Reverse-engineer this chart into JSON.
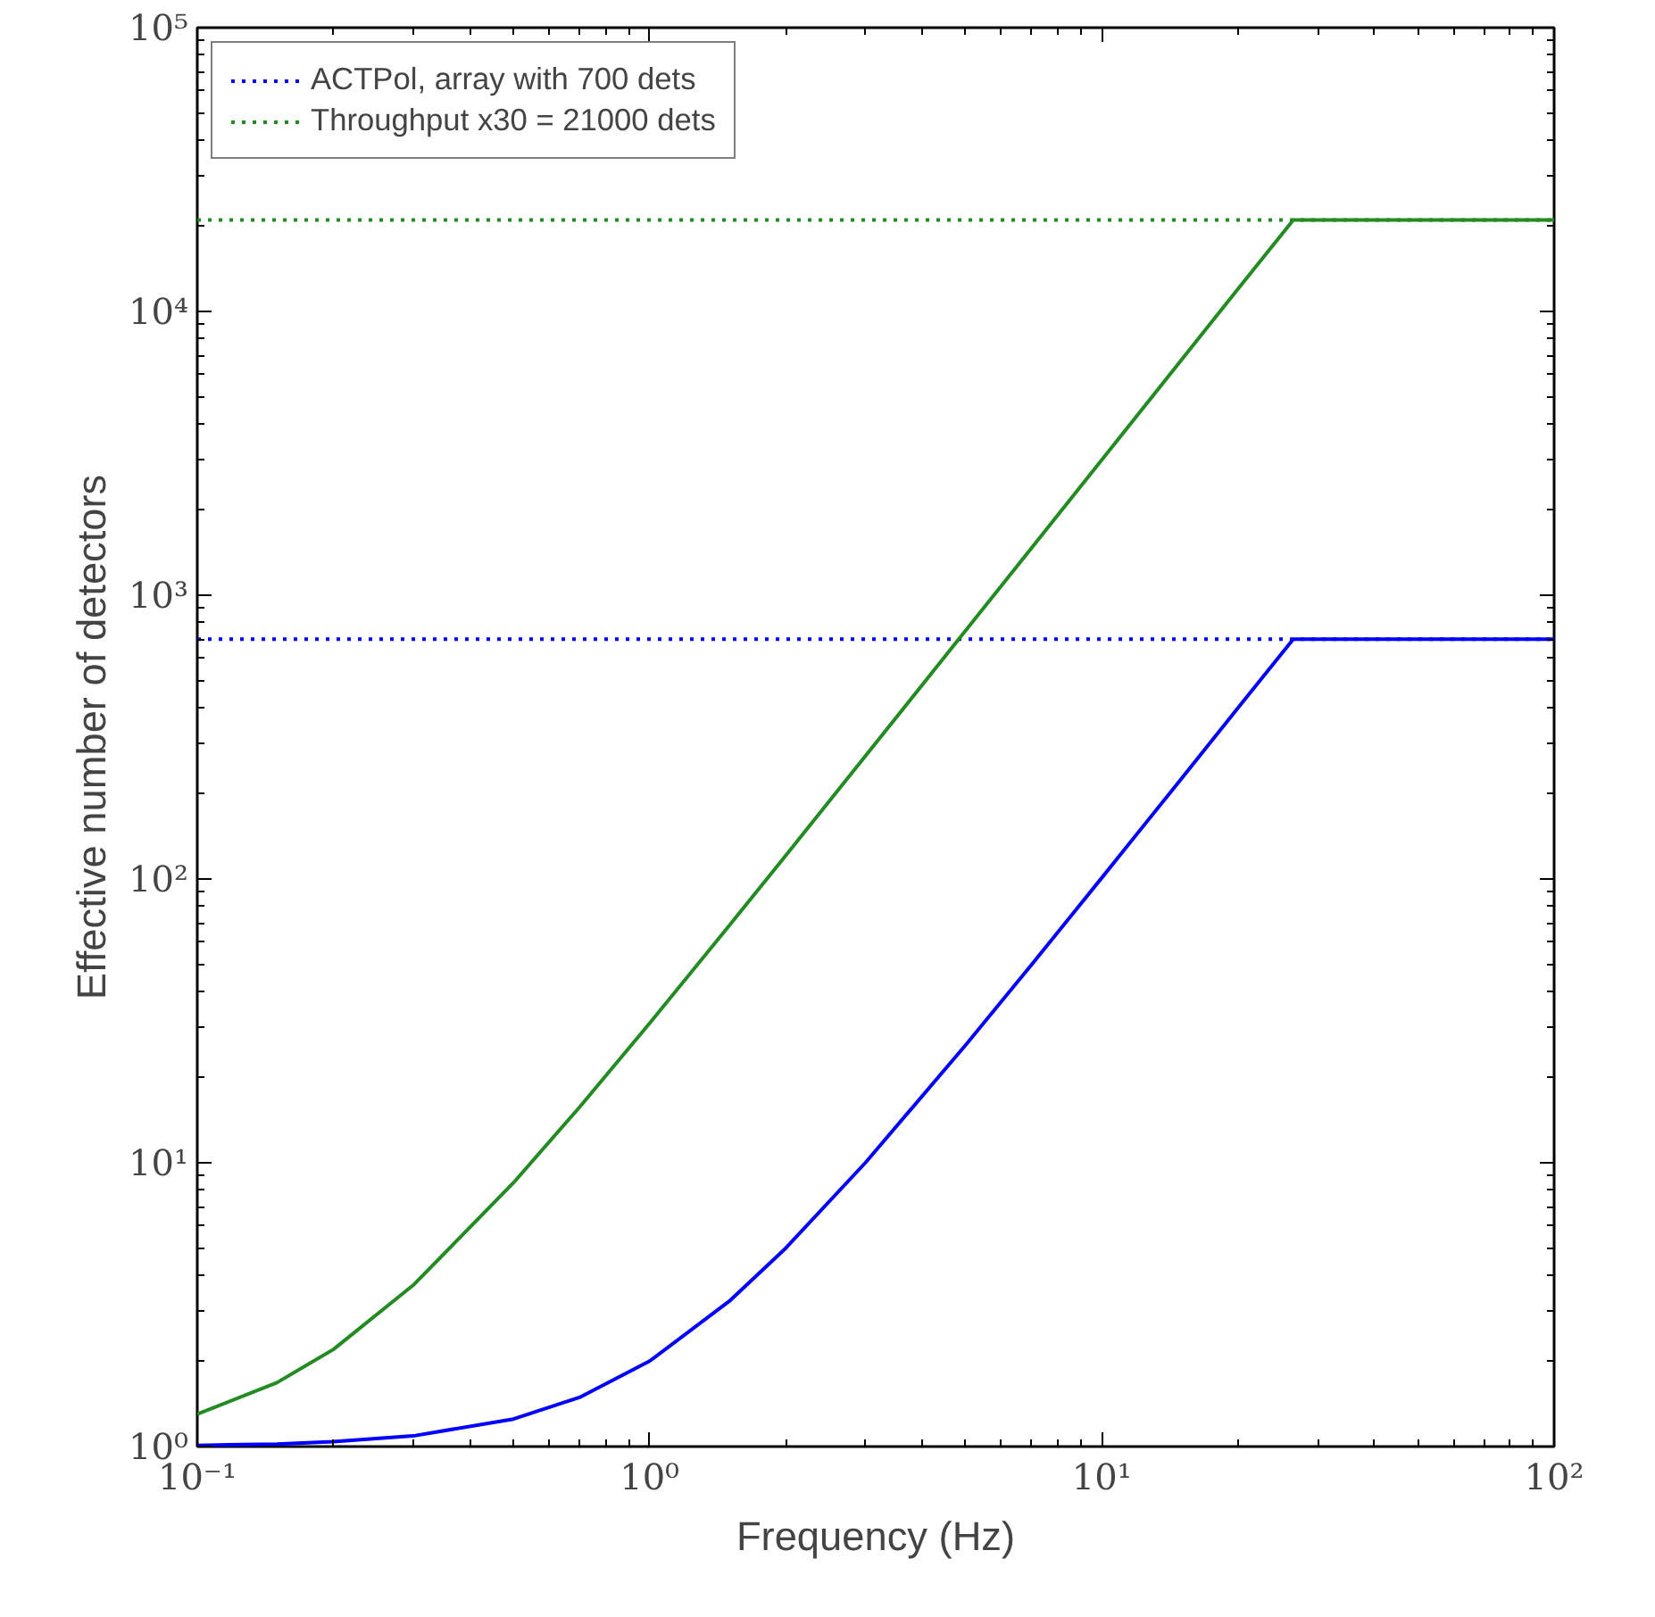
{
  "chart_data": {
    "type": "line",
    "xlabel": "Frequency (Hz)",
    "ylabel": "Effective number of detectors",
    "log": "xy",
    "grid": false,
    "legend": "top left",
    "line_style": "solid",
    "marker": "none",
    "x": [
      0.1,
      0.15,
      0.2,
      0.3,
      0.5,
      0.7,
      1,
      1.5,
      2,
      3,
      5,
      7,
      10,
      15,
      20,
      26.5,
      30,
      50,
      100
    ],
    "series": [
      {
        "color": "#0000ff",
        "values": [
          1.01,
          1.02,
          1.04,
          1.09,
          1.25,
          1.49,
          2,
          3.25,
          5,
          10,
          26,
          50,
          101,
          226,
          401,
          700,
          700,
          700,
          700
        ]
      },
      {
        "color": "#228b22",
        "values": [
          1.3,
          1.68,
          2.2,
          3.7,
          8.5,
          15.7,
          31,
          68.5,
          121,
          271,
          751,
          1471,
          3001,
          6751,
          12001,
          21000,
          21000,
          21000,
          21000
        ]
      }
    ],
    "ref_lines": [
      {
        "axis": "y",
        "value": 700,
        "label": "ACTPol, array with 700 dets",
        "color": "#0000ff",
        "line_style": "dotted"
      },
      {
        "axis": "y",
        "value": 21000,
        "label": "Throughput x30 = 21000 dets",
        "color": "#228b22",
        "line_style": "dotted"
      }
    ],
    "xlim": [
      0.1,
      100
    ],
    "ylim": [
      1,
      100000
    ],
    "xticks": [
      {
        "value": 0.1,
        "label": "10⁻¹"
      },
      {
        "value": 1,
        "label": "10⁰"
      },
      {
        "value": 10,
        "label": "10¹"
      },
      {
        "value": 100,
        "label": "10²"
      }
    ],
    "yticks": [
      {
        "value": 1,
        "label": "10⁰"
      },
      {
        "value": 10,
        "label": "10¹"
      },
      {
        "value": 100,
        "label": "10²"
      },
      {
        "value": 1000,
        "label": "10³"
      },
      {
        "value": 10000,
        "label": "10⁴"
      },
      {
        "value": 100000,
        "label": "10⁵"
      }
    ]
  }
}
